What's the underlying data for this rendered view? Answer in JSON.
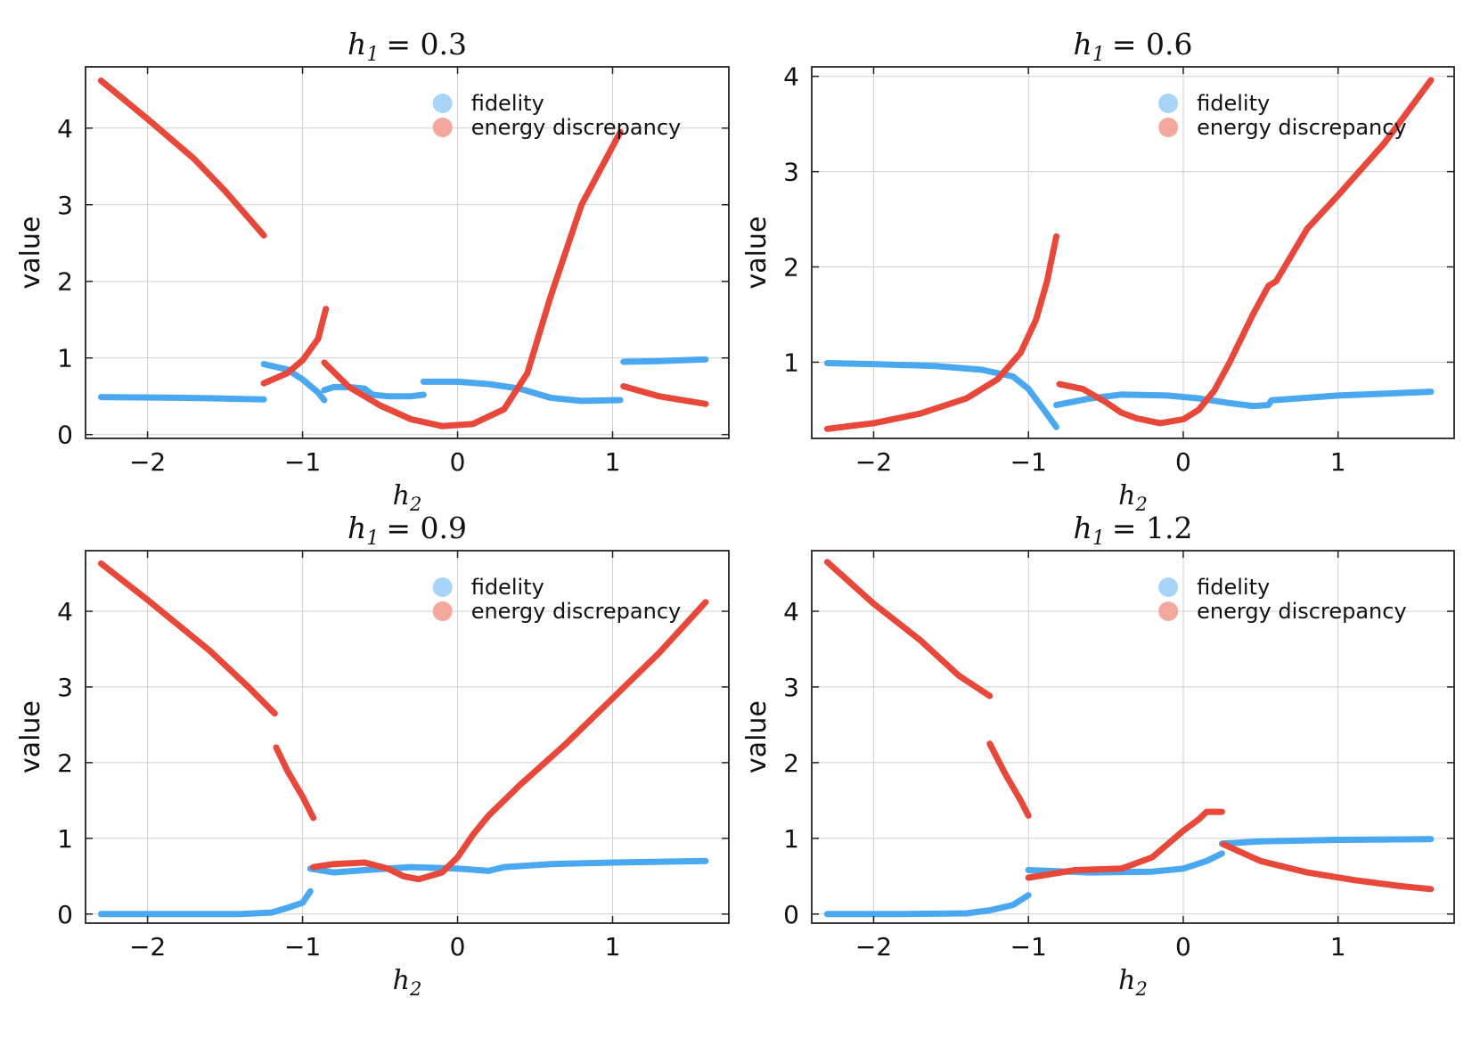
{
  "colors": {
    "fidelity": "#4aa8f0",
    "energy": "#e8483a",
    "fidelity_legend": "#a8d4f8",
    "energy_legend": "#f2a89c"
  },
  "chart_data": [
    {
      "type": "line",
      "title": "h_1 = 0.3",
      "title_var": "h",
      "title_sub": "1",
      "title_value": "= 0.3",
      "xlabel_var": "h",
      "xlabel_sub": "2",
      "ylabel": "value",
      "xlim": [
        -2.4,
        1.75
      ],
      "ylim": [
        -0.05,
        4.8
      ],
      "xticks": [
        -2,
        -1,
        0,
        1
      ],
      "xtick_labels": [
        "−2",
        "−1",
        "0",
        "1"
      ],
      "yticks": [
        0,
        1,
        2,
        3,
        4
      ],
      "ytick_labels": [
        "0",
        "1",
        "2",
        "3",
        "4"
      ],
      "legend": [
        "fidelity",
        "energy discrepancy"
      ],
      "series": [
        {
          "name": "fidelity",
          "segments": [
            [
              [
                -2.3,
                0.49
              ],
              [
                -1.8,
                0.48
              ],
              [
                -1.5,
                0.47
              ],
              [
                -1.25,
                0.46
              ]
            ],
            [
              [
                -1.25,
                0.92
              ],
              [
                -1.1,
                0.85
              ],
              [
                -1.0,
                0.72
              ],
              [
                -0.9,
                0.55
              ],
              [
                -0.86,
                0.45
              ]
            ],
            [
              [
                -0.86,
                0.58
              ],
              [
                -0.8,
                0.62
              ],
              [
                -0.7,
                0.62
              ],
              [
                -0.6,
                0.6
              ],
              [
                -0.55,
                0.52
              ],
              [
                -0.45,
                0.5
              ],
              [
                -0.3,
                0.5
              ],
              [
                -0.22,
                0.52
              ]
            ],
            [
              [
                -0.22,
                0.69
              ],
              [
                0.0,
                0.69
              ],
              [
                0.2,
                0.66
              ],
              [
                0.4,
                0.6
              ],
              [
                0.6,
                0.48
              ],
              [
                0.8,
                0.44
              ],
              [
                1.05,
                0.45
              ]
            ],
            [
              [
                1.07,
                0.95
              ],
              [
                1.3,
                0.96
              ],
              [
                1.6,
                0.98
              ]
            ]
          ]
        },
        {
          "name": "energy discrepancy",
          "segments": [
            [
              [
                -2.3,
                4.62
              ],
              [
                -2.0,
                4.12
              ],
              [
                -1.7,
                3.6
              ],
              [
                -1.5,
                3.18
              ],
              [
                -1.25,
                2.6
              ]
            ],
            [
              [
                -1.25,
                0.67
              ],
              [
                -1.1,
                0.8
              ],
              [
                -1.0,
                0.97
              ],
              [
                -0.9,
                1.25
              ],
              [
                -0.85,
                1.64
              ]
            ],
            [
              [
                -0.86,
                0.94
              ],
              [
                -0.7,
                0.62
              ],
              [
                -0.5,
                0.38
              ],
              [
                -0.3,
                0.2
              ],
              [
                -0.1,
                0.11
              ],
              [
                0.1,
                0.14
              ],
              [
                0.3,
                0.33
              ],
              [
                0.45,
                0.8
              ],
              [
                0.6,
                1.8
              ],
              [
                0.8,
                3.0
              ],
              [
                1.05,
                3.95
              ]
            ],
            [
              [
                1.07,
                0.63
              ],
              [
                1.3,
                0.5
              ],
              [
                1.6,
                0.4
              ]
            ]
          ]
        }
      ]
    },
    {
      "type": "line",
      "title": "h_1 = 0.6",
      "title_var": "h",
      "title_sub": "1",
      "title_value": "= 0.6",
      "xlabel_var": "h",
      "xlabel_sub": "2",
      "ylabel": "value",
      "xlim": [
        -2.4,
        1.75
      ],
      "ylim": [
        0.2,
        4.1
      ],
      "xticks": [
        -2,
        -1,
        0,
        1
      ],
      "xtick_labels": [
        "−2",
        "−1",
        "0",
        "1"
      ],
      "yticks": [
        1,
        2,
        3,
        4
      ],
      "ytick_labels": [
        "1",
        "2",
        "3",
        "4"
      ],
      "legend": [
        "fidelity",
        "energy discrepancy"
      ],
      "series": [
        {
          "name": "fidelity",
          "segments": [
            [
              [
                -2.3,
                0.99
              ],
              [
                -2.0,
                0.98
              ],
              [
                -1.6,
                0.96
              ],
              [
                -1.3,
                0.92
              ],
              [
                -1.1,
                0.85
              ],
              [
                -1.0,
                0.72
              ],
              [
                -0.9,
                0.5
              ],
              [
                -0.82,
                0.32
              ]
            ],
            [
              [
                -0.82,
                0.55
              ],
              [
                -0.6,
                0.62
              ],
              [
                -0.4,
                0.66
              ],
              [
                -0.1,
                0.65
              ],
              [
                0.1,
                0.62
              ],
              [
                0.3,
                0.57
              ],
              [
                0.45,
                0.54
              ],
              [
                0.55,
                0.55
              ],
              [
                0.57,
                0.6
              ],
              [
                1.0,
                0.65
              ],
              [
                1.6,
                0.69
              ]
            ]
          ]
        },
        {
          "name": "energy discrepancy",
          "segments": [
            [
              [
                -2.3,
                0.3
              ],
              [
                -2.0,
                0.36
              ],
              [
                -1.7,
                0.46
              ],
              [
                -1.4,
                0.62
              ],
              [
                -1.2,
                0.82
              ],
              [
                -1.05,
                1.1
              ],
              [
                -0.95,
                1.45
              ],
              [
                -0.88,
                1.85
              ],
              [
                -0.82,
                2.32
              ]
            ],
            [
              [
                -0.8,
                0.77
              ],
              [
                -0.65,
                0.72
              ],
              [
                -0.5,
                0.58
              ],
              [
                -0.4,
                0.47
              ],
              [
                -0.3,
                0.41
              ],
              [
                -0.15,
                0.36
              ],
              [
                0.0,
                0.4
              ],
              [
                0.1,
                0.5
              ],
              [
                0.2,
                0.7
              ],
              [
                0.3,
                1.0
              ],
              [
                0.45,
                1.5
              ],
              [
                0.55,
                1.8
              ],
              [
                0.6,
                1.85
              ],
              [
                0.8,
                2.4
              ],
              [
                1.0,
                2.75
              ],
              [
                1.3,
                3.3
              ],
              [
                1.6,
                3.96
              ]
            ]
          ]
        }
      ]
    },
    {
      "type": "line",
      "title": "h_1 = 0.9",
      "title_var": "h",
      "title_sub": "1",
      "title_value": "= 0.9",
      "xlabel_var": "h",
      "xlabel_sub": "2",
      "ylabel": "value",
      "xlim": [
        -2.4,
        1.75
      ],
      "ylim": [
        -0.12,
        4.8
      ],
      "xticks": [
        -2,
        -1,
        0,
        1
      ],
      "xtick_labels": [
        "−2",
        "−1",
        "0",
        "1"
      ],
      "yticks": [
        0,
        1,
        2,
        3,
        4
      ],
      "ytick_labels": [
        "0",
        "1",
        "2",
        "3",
        "4"
      ],
      "legend": [
        "fidelity",
        "energy discrepancy"
      ],
      "series": [
        {
          "name": "fidelity",
          "segments": [
            [
              [
                -2.3,
                0.0
              ],
              [
                -1.8,
                0.0
              ],
              [
                -1.4,
                0.0
              ],
              [
                -1.2,
                0.02
              ],
              [
                -1.1,
                0.08
              ],
              [
                -1.0,
                0.15
              ],
              [
                -0.95,
                0.3
              ]
            ],
            [
              [
                -0.95,
                0.6
              ],
              [
                -0.8,
                0.55
              ],
              [
                -0.6,
                0.58
              ],
              [
                -0.3,
                0.62
              ],
              [
                0.0,
                0.6
              ],
              [
                0.2,
                0.57
              ],
              [
                0.3,
                0.62
              ],
              [
                0.6,
                0.66
              ],
              [
                1.0,
                0.68
              ],
              [
                1.6,
                0.7
              ]
            ]
          ]
        },
        {
          "name": "energy discrepancy",
          "segments": [
            [
              [
                -2.3,
                4.63
              ],
              [
                -2.0,
                4.15
              ],
              [
                -1.6,
                3.48
              ],
              [
                -1.35,
                3.0
              ],
              [
                -1.18,
                2.65
              ]
            ],
            [
              [
                -1.17,
                2.2
              ],
              [
                -1.1,
                1.9
              ],
              [
                -1.0,
                1.55
              ],
              [
                -0.93,
                1.27
              ]
            ],
            [
              [
                -0.93,
                0.62
              ],
              [
                -0.8,
                0.66
              ],
              [
                -0.6,
                0.68
              ],
              [
                -0.45,
                0.6
              ],
              [
                -0.35,
                0.5
              ],
              [
                -0.25,
                0.46
              ],
              [
                -0.1,
                0.55
              ],
              [
                0.0,
                0.75
              ],
              [
                0.1,
                1.05
              ],
              [
                0.2,
                1.3
              ],
              [
                0.4,
                1.7
              ],
              [
                0.7,
                2.25
              ],
              [
                1.0,
                2.85
              ],
              [
                1.3,
                3.45
              ],
              [
                1.6,
                4.12
              ]
            ]
          ]
        }
      ]
    },
    {
      "type": "line",
      "title": "h_1 = 1.2",
      "title_var": "h",
      "title_sub": "1",
      "title_value": "= 1.2",
      "xlabel_var": "h",
      "xlabel_sub": "2",
      "ylabel": "value",
      "xlim": [
        -2.4,
        1.75
      ],
      "ylim": [
        -0.12,
        4.8
      ],
      "xticks": [
        -2,
        -1,
        0,
        1
      ],
      "xtick_labels": [
        "−2",
        "−1",
        "0",
        "1"
      ],
      "yticks": [
        0,
        1,
        2,
        3,
        4
      ],
      "ytick_labels": [
        "0",
        "1",
        "2",
        "3",
        "4"
      ],
      "legend": [
        "fidelity",
        "energy discrepancy"
      ],
      "series": [
        {
          "name": "fidelity",
          "segments": [
            [
              [
                -2.3,
                0.0
              ],
              [
                -1.8,
                0.0
              ],
              [
                -1.4,
                0.01
              ],
              [
                -1.25,
                0.05
              ],
              [
                -1.1,
                0.12
              ],
              [
                -1.0,
                0.25
              ]
            ],
            [
              [
                -1.0,
                0.58
              ],
              [
                -0.6,
                0.55
              ],
              [
                -0.2,
                0.56
              ],
              [
                0.0,
                0.6
              ],
              [
                0.15,
                0.7
              ],
              [
                0.25,
                0.8
              ]
            ],
            [
              [
                0.25,
                0.93
              ],
              [
                0.5,
                0.96
              ],
              [
                1.0,
                0.98
              ],
              [
                1.6,
                0.99
              ]
            ]
          ]
        },
        {
          "name": "energy discrepancy",
          "segments": [
            [
              [
                -2.3,
                4.65
              ],
              [
                -2.0,
                4.1
              ],
              [
                -1.7,
                3.62
              ],
              [
                -1.45,
                3.15
              ],
              [
                -1.25,
                2.88
              ]
            ],
            [
              [
                -1.25,
                2.25
              ],
              [
                -1.15,
                1.85
              ],
              [
                -1.05,
                1.5
              ],
              [
                -1.0,
                1.3
              ]
            ],
            [
              [
                -1.0,
                0.48
              ],
              [
                -0.7,
                0.58
              ],
              [
                -0.4,
                0.6
              ],
              [
                -0.2,
                0.75
              ],
              [
                0.0,
                1.1
              ],
              [
                0.1,
                1.25
              ],
              [
                0.15,
                1.35
              ],
              [
                0.25,
                1.35
              ]
            ],
            [
              [
                0.26,
                0.92
              ],
              [
                0.5,
                0.7
              ],
              [
                0.8,
                0.55
              ],
              [
                1.1,
                0.45
              ],
              [
                1.4,
                0.37
              ],
              [
                1.6,
                0.33
              ]
            ]
          ]
        }
      ]
    }
  ]
}
